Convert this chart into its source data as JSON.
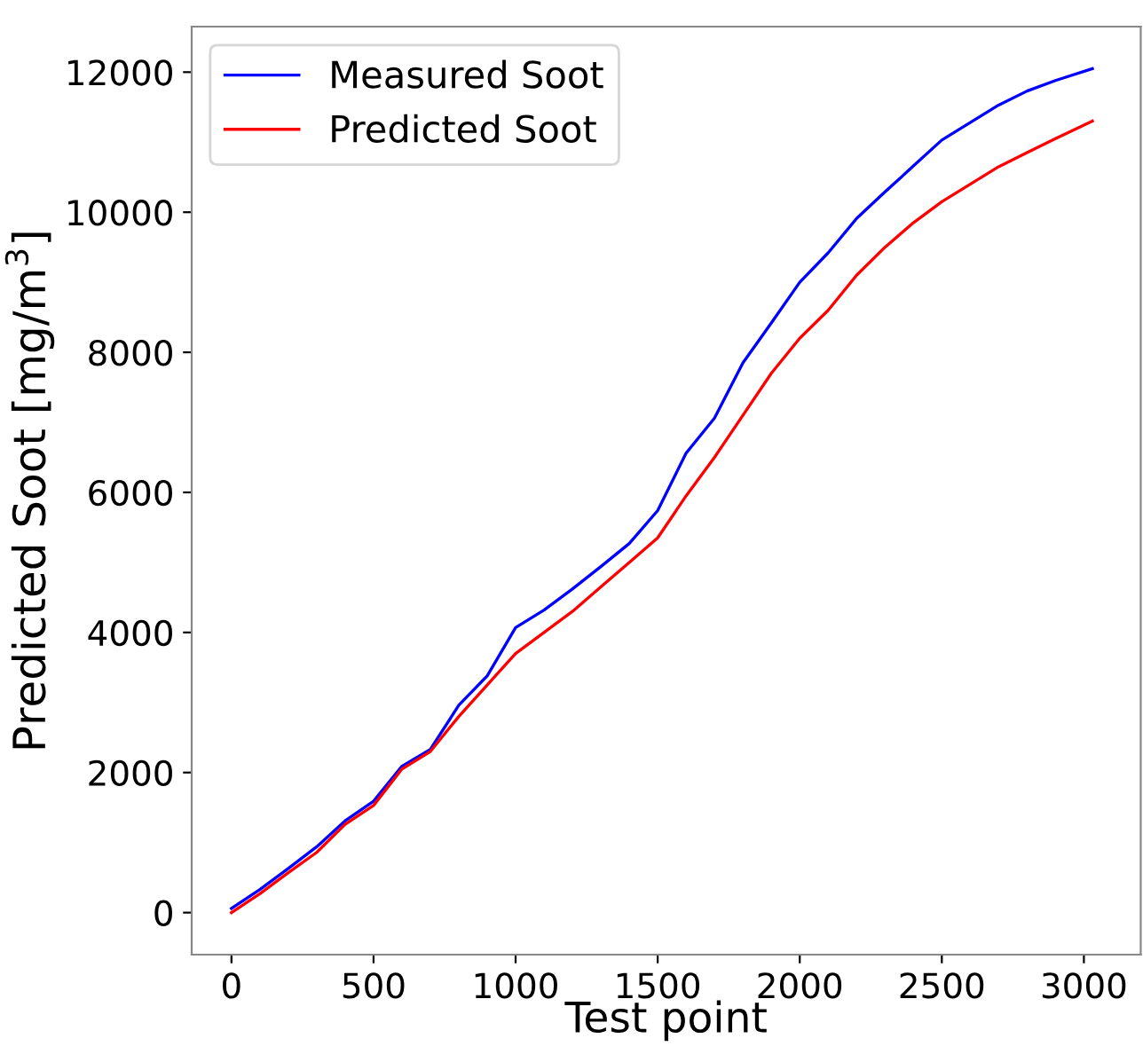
{
  "chart_data": {
    "type": "line",
    "xlabel": "Test point",
    "ylabel": "Predicted Soot [mg/m$^{3}$]",
    "xlim": [
      -140,
      3200
    ],
    "ylim": [
      -600,
      12650
    ],
    "xticks": [
      0,
      500,
      1000,
      1500,
      2000,
      2500,
      3000
    ],
    "yticks": [
      0,
      2000,
      4000,
      6000,
      8000,
      10000,
      12000
    ],
    "grid": false,
    "legend": "top left",
    "marker": "none",
    "line_style": "solid",
    "x": [
      0,
      100,
      200,
      300,
      400,
      500,
      600,
      700,
      800,
      900,
      1000,
      1100,
      1200,
      1300,
      1400,
      1500,
      1600,
      1700,
      1800,
      1900,
      2000,
      2100,
      2200,
      2300,
      2400,
      2500,
      2600,
      2700,
      2800,
      2900,
      3030
    ],
    "series": [
      {
        "name": "Measured Soot",
        "color": "#0000ff",
        "values": [
          60,
          330,
          630,
          940,
          1310,
          1590,
          2090,
          2330,
          2960,
          3380,
          4070,
          4320,
          4620,
          4940,
          5270,
          5740,
          6560,
          7060,
          7850,
          8420,
          9000,
          9420,
          9910,
          10290,
          10660,
          11030,
          11280,
          11530,
          11730,
          11880,
          12050
        ]
      },
      {
        "name": "Predicted Soot",
        "color": "#ff0000",
        "values": [
          0,
          270,
          570,
          860,
          1260,
          1530,
          2050,
          2300,
          2800,
          3250,
          3700,
          4000,
          4300,
          4650,
          5000,
          5350,
          5950,
          6500,
          7100,
          7700,
          8200,
          8600,
          9100,
          9500,
          9850,
          10150,
          10400,
          10650,
          10850,
          11050,
          11300
        ]
      }
    ]
  }
}
